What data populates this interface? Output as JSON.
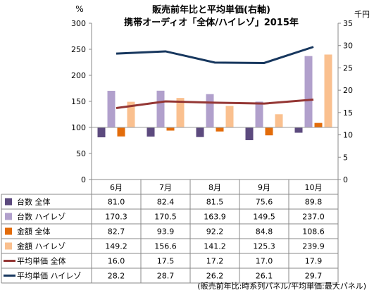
{
  "chart_data": {
    "type": "bar",
    "title": "販売前年比と平均単価(右軸)",
    "subtitle": "携帯オーディオ「全体/ハイレゾ」2015年",
    "y_left_unit": "%",
    "y_right_unit": "千円",
    "ylim_left": [
      0,
      300
    ],
    "yticks_left": [
      "0",
      "50",
      "100",
      "150",
      "200",
      "250",
      "300"
    ],
    "ylim_right": [
      0,
      35
    ],
    "yticks_right": [
      "0",
      "5",
      "10",
      "15",
      "20",
      "25",
      "30",
      "35"
    ],
    "bar_baseline": 100,
    "grid": false,
    "categories": [
      "6月",
      "7月",
      "8月",
      "9月",
      "10月"
    ],
    "series": [
      {
        "name": "台数 全体",
        "kind": "bar",
        "axis": "left",
        "color": "#5c4a7e",
        "values": [
          81.0,
          82.4,
          81.5,
          75.6,
          89.8
        ],
        "labels": [
          "81.0",
          "82.4",
          "81.5",
          "75.6",
          "89.8"
        ]
      },
      {
        "name": "台数 ハイレゾ",
        "kind": "bar",
        "axis": "left",
        "color": "#b1a0cc",
        "values": [
          170.3,
          170.5,
          163.9,
          149.5,
          237.0
        ],
        "labels": [
          "170.3",
          "170.5",
          "163.9",
          "149.5",
          "237.0"
        ]
      },
      {
        "name": "金額 全体",
        "kind": "bar",
        "axis": "left",
        "color": "#e36c0a",
        "values": [
          82.7,
          93.9,
          92.2,
          84.8,
          108.6
        ],
        "labels": [
          "82.7",
          "93.9",
          "92.2",
          "84.8",
          "108.6"
        ]
      },
      {
        "name": "金額 ハイレゾ",
        "kind": "bar",
        "axis": "left",
        "color": "#fac08f",
        "values": [
          149.2,
          156.6,
          141.2,
          125.3,
          239.9
        ],
        "labels": [
          "149.2",
          "156.6",
          "141.2",
          "125.3",
          "239.9"
        ]
      },
      {
        "name": "平均単価 全体",
        "kind": "line",
        "axis": "right",
        "color": "#943634",
        "values": [
          16.0,
          17.5,
          17.2,
          17.0,
          17.9
        ],
        "labels": [
          "16.0",
          "17.5",
          "17.2",
          "17.0",
          "17.9"
        ]
      },
      {
        "name": "平均単価 ハイレゾ",
        "kind": "line",
        "axis": "right",
        "color": "#17375e",
        "values": [
          28.2,
          28.7,
          26.2,
          26.1,
          29.7
        ],
        "labels": [
          "28.2",
          "28.7",
          "26.2",
          "26.1",
          "29.7"
        ]
      }
    ]
  },
  "footnote": "(販売前年比:時系列パネル/平均単価:最大パネル)"
}
